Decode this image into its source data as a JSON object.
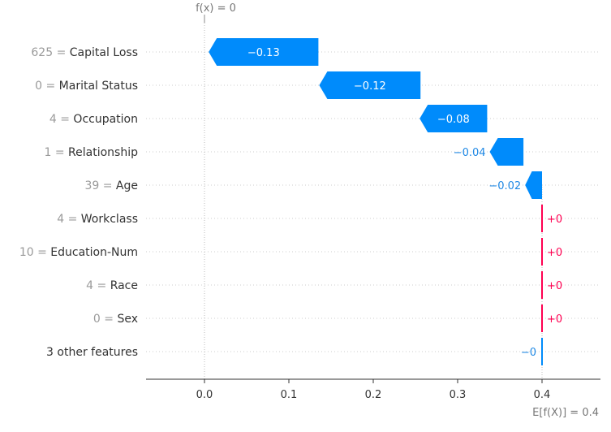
{
  "chart_data": {
    "type": "waterfall",
    "base_value": 0.4,
    "base_label": "E[f(X)] = 0.4",
    "output_value": 0,
    "output_label": "f(x) = 0",
    "xlim": [
      -0.07,
      0.46
    ],
    "xticks": [
      0.0,
      0.1,
      0.2,
      0.3,
      0.4
    ],
    "xtick_labels": [
      "0.0",
      "0.1",
      "0.2",
      "0.3",
      "0.4"
    ],
    "colors": {
      "negative": "#008bfb",
      "positive": "#ff0051",
      "negative_text": "#1e88e5"
    },
    "features": [
      {
        "value": "625",
        "name": "Capital Loss",
        "start": 0.135,
        "contribution": -0.13,
        "label": "−0.13"
      },
      {
        "value": "0",
        "name": "Marital Status",
        "start": 0.256,
        "contribution": -0.12,
        "label": "−0.12"
      },
      {
        "value": "4",
        "name": "Occupation",
        "start": 0.335,
        "contribution": -0.08,
        "label": "−0.08"
      },
      {
        "value": "1",
        "name": "Relationship",
        "start": 0.378,
        "contribution": -0.04,
        "label": "−0.04"
      },
      {
        "value": "39",
        "name": "Age",
        "start": 0.4,
        "contribution": -0.02,
        "label": "−0.02"
      },
      {
        "value": "4",
        "name": "Workclass",
        "start": 0.4,
        "contribution": 0.0,
        "label": "+0"
      },
      {
        "value": "10",
        "name": "Education-Num",
        "start": 0.4,
        "contribution": 0.0,
        "label": "+0"
      },
      {
        "value": "4",
        "name": "Race",
        "start": 0.4,
        "contribution": 0.0,
        "label": "+0"
      },
      {
        "value": "0",
        "name": "Sex",
        "start": 0.4,
        "contribution": 0.0,
        "label": "+0"
      },
      {
        "value": "",
        "name": "3 other features",
        "start": 0.4,
        "contribution": -0.0,
        "label": "−0"
      }
    ]
  }
}
